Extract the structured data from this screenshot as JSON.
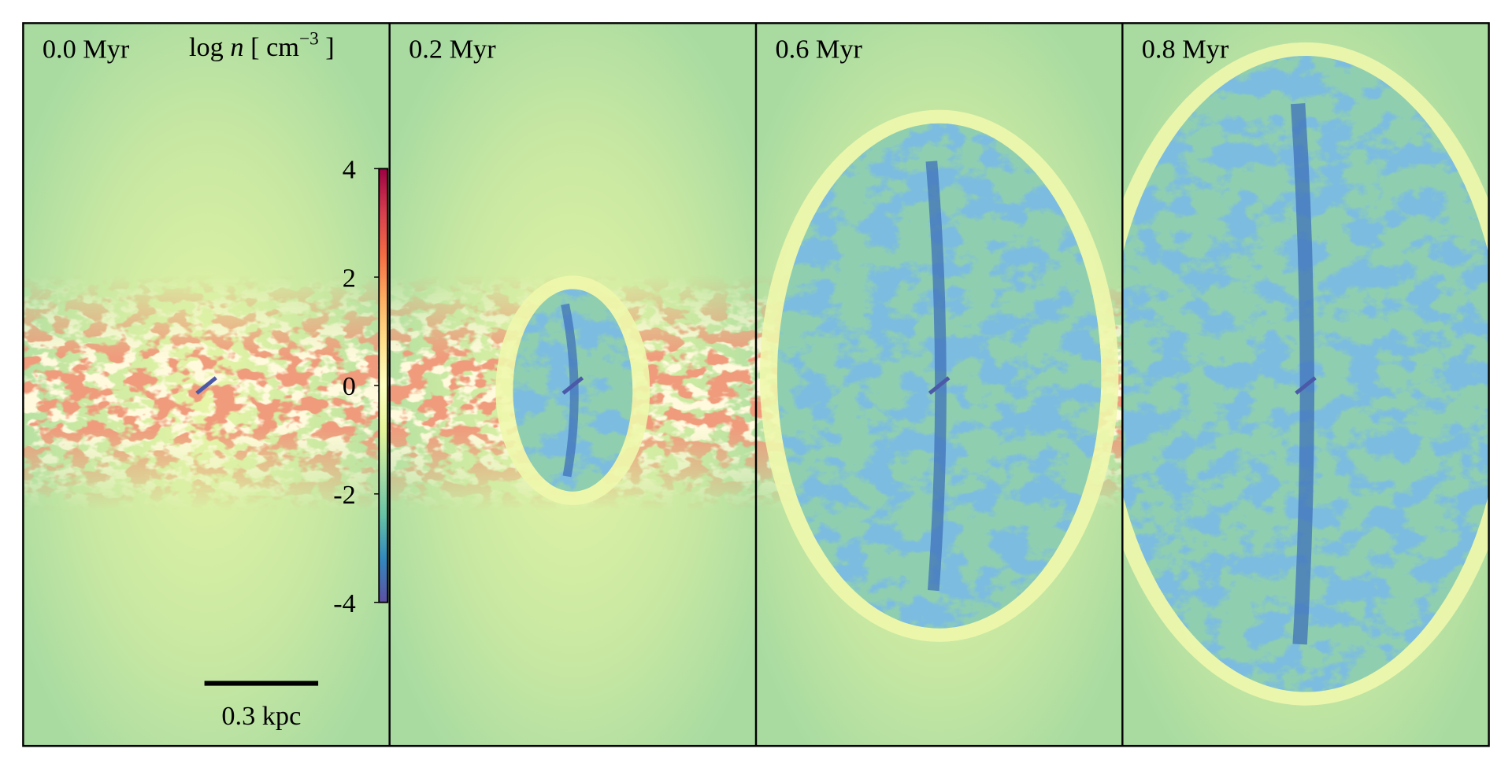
{
  "panels": [
    {
      "time": "0.0 Myr"
    },
    {
      "time": "0.2 Myr"
    },
    {
      "time": "0.6 Myr"
    },
    {
      "time": "0.8 Myr"
    }
  ],
  "colorbar": {
    "label": [
      "log",
      "n",
      "[ cm",
      "−3",
      "]"
    ],
    "lim": [
      -4,
      4
    ],
    "ticks": [
      4,
      2,
      0,
      -2,
      -4
    ]
  },
  "scale_bar": {
    "label": "0.3 kpc"
  }
}
